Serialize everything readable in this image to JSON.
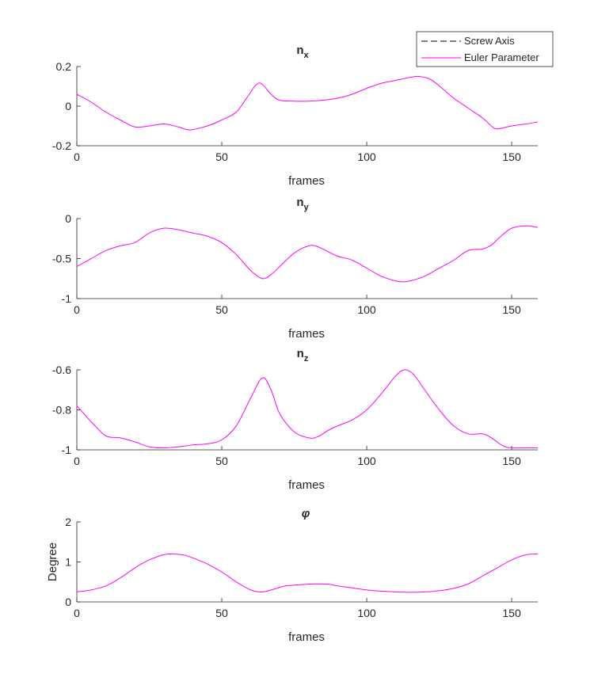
{
  "chart_data": [
    {
      "type": "line",
      "title": "n",
      "title_sub": "x",
      "xlabel": "frames",
      "ylabel": "",
      "xlim": [
        0,
        159
      ],
      "ylim": [
        -0.2,
        0.2
      ],
      "xticks": [
        0,
        50,
        100,
        150
      ],
      "yticks": [
        -0.2,
        0,
        0.2
      ],
      "xtick_labels": [
        "0",
        "50",
        "100",
        "150"
      ],
      "ytick_labels": [
        "-0.2",
        "0",
        "0.2"
      ],
      "series": [
        {
          "name": "Euler Parameter",
          "color": "#ff00ff",
          "points": [
            [
              0,
              0.06
            ],
            [
              5,
              0.02
            ],
            [
              10,
              -0.03
            ],
            [
              15,
              -0.07
            ],
            [
              20,
              -0.105
            ],
            [
              25,
              -0.1
            ],
            [
              30,
              -0.09
            ],
            [
              35,
              -0.105
            ],
            [
              39,
              -0.12
            ],
            [
              45,
              -0.1
            ],
            [
              50,
              -0.07
            ],
            [
              55,
              -0.03
            ],
            [
              59,
              0.05
            ],
            [
              62,
              0.11
            ],
            [
              64,
              0.11
            ],
            [
              67,
              0.06
            ],
            [
              70,
              0.03
            ],
            [
              75,
              0.025
            ],
            [
              80,
              0.025
            ],
            [
              85,
              0.03
            ],
            [
              90,
              0.04
            ],
            [
              95,
              0.06
            ],
            [
              100,
              0.09
            ],
            [
              105,
              0.115
            ],
            [
              110,
              0.13
            ],
            [
              115,
              0.145
            ],
            [
              118,
              0.15
            ],
            [
              122,
              0.135
            ],
            [
              126,
              0.09
            ],
            [
              130,
              0.04
            ],
            [
              135,
              -0.01
            ],
            [
              140,
              -0.06
            ],
            [
              143,
              -0.1
            ],
            [
              145,
              -0.115
            ],
            [
              150,
              -0.1
            ],
            [
              155,
              -0.09
            ],
            [
              159,
              -0.08
            ]
          ]
        }
      ]
    },
    {
      "type": "line",
      "title": "n",
      "title_sub": "y",
      "xlabel": "frames",
      "ylabel": "",
      "xlim": [
        0,
        159
      ],
      "ylim": [
        -1,
        0
      ],
      "xticks": [
        0,
        50,
        100,
        150
      ],
      "yticks": [
        -1,
        -0.5,
        0
      ],
      "xtick_labels": [
        "0",
        "50",
        "100",
        "150"
      ],
      "ytick_labels": [
        "-1",
        "-0.5",
        "0"
      ],
      "series": [
        {
          "name": "Euler Parameter",
          "color": "#ff00ff",
          "points": [
            [
              0,
              -0.6
            ],
            [
              5,
              -0.5
            ],
            [
              10,
              -0.4
            ],
            [
              15,
              -0.34
            ],
            [
              20,
              -0.3
            ],
            [
              25,
              -0.18
            ],
            [
              30,
              -0.12
            ],
            [
              35,
              -0.14
            ],
            [
              40,
              -0.18
            ],
            [
              45,
              -0.22
            ],
            [
              50,
              -0.3
            ],
            [
              55,
              -0.45
            ],
            [
              60,
              -0.65
            ],
            [
              64,
              -0.75
            ],
            [
              67,
              -0.7
            ],
            [
              70,
              -0.6
            ],
            [
              75,
              -0.43
            ],
            [
              80,
              -0.34
            ],
            [
              83,
              -0.35
            ],
            [
              87,
              -0.42
            ],
            [
              90,
              -0.47
            ],
            [
              95,
              -0.52
            ],
            [
              100,
              -0.62
            ],
            [
              105,
              -0.72
            ],
            [
              110,
              -0.78
            ],
            [
              113,
              -0.79
            ],
            [
              116,
              -0.77
            ],
            [
              120,
              -0.72
            ],
            [
              125,
              -0.62
            ],
            [
              130,
              -0.52
            ],
            [
              135,
              -0.4
            ],
            [
              140,
              -0.38
            ],
            [
              143,
              -0.33
            ],
            [
              146,
              -0.23
            ],
            [
              150,
              -0.12
            ],
            [
              155,
              -0.09
            ],
            [
              159,
              -0.11
            ]
          ]
        }
      ]
    },
    {
      "type": "line",
      "title": "n",
      "title_sub": "z",
      "xlabel": "frames",
      "ylabel": "",
      "xlim": [
        0,
        159
      ],
      "ylim": [
        -1,
        -0.6
      ],
      "xticks": [
        0,
        50,
        100,
        150
      ],
      "yticks": [
        -1,
        -0.8,
        -0.6
      ],
      "xtick_labels": [
        "0",
        "50",
        "100",
        "150"
      ],
      "ytick_labels": [
        "-1",
        "-0.8",
        "-0.6"
      ],
      "series": [
        {
          "name": "Euler Parameter",
          "color": "#ff00ff",
          "points": [
            [
              0,
              -0.78
            ],
            [
              5,
              -0.86
            ],
            [
              10,
              -0.93
            ],
            [
              15,
              -0.94
            ],
            [
              20,
              -0.96
            ],
            [
              25,
              -0.985
            ],
            [
              30,
              -0.99
            ],
            [
              35,
              -0.985
            ],
            [
              40,
              -0.975
            ],
            [
              45,
              -0.97
            ],
            [
              50,
              -0.95
            ],
            [
              55,
              -0.88
            ],
            [
              60,
              -0.74
            ],
            [
              64,
              -0.64
            ],
            [
              67,
              -0.7
            ],
            [
              70,
              -0.82
            ],
            [
              75,
              -0.91
            ],
            [
              80,
              -0.94
            ],
            [
              83,
              -0.935
            ],
            [
              87,
              -0.9
            ],
            [
              90,
              -0.88
            ],
            [
              95,
              -0.85
            ],
            [
              100,
              -0.8
            ],
            [
              105,
              -0.72
            ],
            [
              110,
              -0.63
            ],
            [
              113,
              -0.6
            ],
            [
              116,
              -0.62
            ],
            [
              120,
              -0.7
            ],
            [
              125,
              -0.8
            ],
            [
              130,
              -0.88
            ],
            [
              135,
              -0.92
            ],
            [
              140,
              -0.92
            ],
            [
              143,
              -0.94
            ],
            [
              147,
              -0.98
            ],
            [
              150,
              -0.99
            ],
            [
              155,
              -0.99
            ],
            [
              159,
              -0.99
            ]
          ]
        }
      ]
    },
    {
      "type": "line",
      "title": "φ",
      "title_sub": "",
      "xlabel": "frames",
      "ylabel": "Degree",
      "xlim": [
        0,
        159
      ],
      "ylim": [
        0,
        2
      ],
      "xticks": [
        0,
        50,
        100,
        150
      ],
      "yticks": [
        0,
        1,
        2
      ],
      "xtick_labels": [
        "0",
        "50",
        "100",
        "150"
      ],
      "ytick_labels": [
        "0",
        "1",
        "2"
      ],
      "series": [
        {
          "name": "Euler Parameter",
          "color": "#ff00ff",
          "points": [
            [
              0,
              0.25
            ],
            [
              5,
              0.3
            ],
            [
              10,
              0.4
            ],
            [
              15,
              0.6
            ],
            [
              20,
              0.85
            ],
            [
              25,
              1.05
            ],
            [
              30,
              1.18
            ],
            [
              33,
              1.2
            ],
            [
              37,
              1.17
            ],
            [
              40,
              1.1
            ],
            [
              45,
              0.95
            ],
            [
              50,
              0.75
            ],
            [
              55,
              0.5
            ],
            [
              60,
              0.3
            ],
            [
              64,
              0.25
            ],
            [
              68,
              0.32
            ],
            [
              72,
              0.4
            ],
            [
              77,
              0.43
            ],
            [
              82,
              0.45
            ],
            [
              87,
              0.44
            ],
            [
              90,
              0.4
            ],
            [
              95,
              0.35
            ],
            [
              100,
              0.3
            ],
            [
              105,
              0.27
            ],
            [
              110,
              0.25
            ],
            [
              115,
              0.24
            ],
            [
              120,
              0.25
            ],
            [
              125,
              0.28
            ],
            [
              130,
              0.34
            ],
            [
              135,
              0.45
            ],
            [
              140,
              0.65
            ],
            [
              145,
              0.85
            ],
            [
              150,
              1.05
            ],
            [
              155,
              1.18
            ],
            [
              159,
              1.2
            ]
          ]
        }
      ]
    }
  ],
  "legend": {
    "placement": "top-right",
    "entries": [
      {
        "label": "Screw Axis",
        "color": "#000000",
        "style": "dashed"
      },
      {
        "label": "Euler Parameter",
        "color": "#ff00ff",
        "style": "solid"
      }
    ]
  }
}
